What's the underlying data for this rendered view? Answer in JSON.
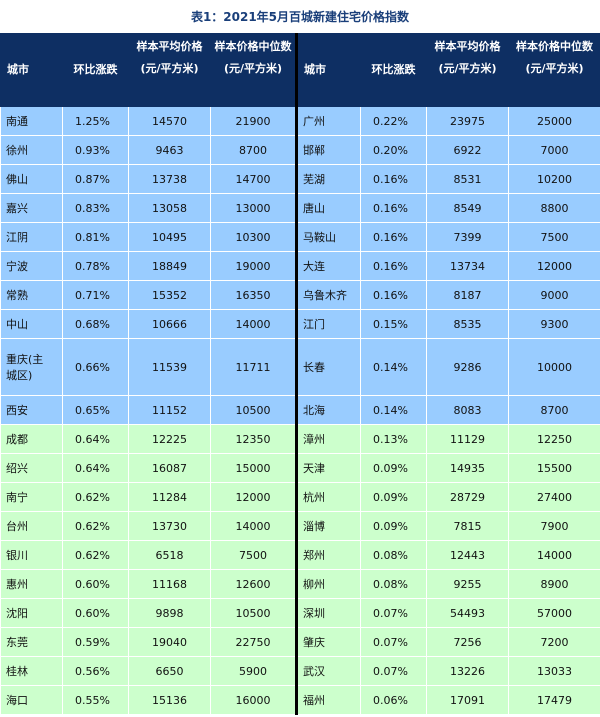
{
  "title": "表1：2021年5月百城新建住宅价格指数",
  "headers": {
    "city": "城市",
    "change": "环比涨跌",
    "avg_line1": "样本平均价格",
    "avg_unit": "(元/平方米)",
    "med_line1": "样本价格中位数",
    "med_unit": "(元/平方米)"
  },
  "colors": {
    "header": "#0e2f63",
    "blue_rows": "#99ccff",
    "green_rows": "#ccffcc"
  },
  "rows": [
    {
      "band": "blue",
      "l": {
        "city": "南通",
        "chg": "1.25%",
        "avg": "14570",
        "med": "21900"
      },
      "r": {
        "city": "广州",
        "chg": "0.22%",
        "avg": "23975",
        "med": "25000"
      }
    },
    {
      "band": "blue",
      "l": {
        "city": "徐州",
        "chg": "0.93%",
        "avg": "9463",
        "med": "8700"
      },
      "r": {
        "city": "邯郸",
        "chg": "0.20%",
        "avg": "6922",
        "med": "7000"
      }
    },
    {
      "band": "blue",
      "l": {
        "city": "佛山",
        "chg": "0.87%",
        "avg": "13738",
        "med": "14700"
      },
      "r": {
        "city": "芜湖",
        "chg": "0.16%",
        "avg": "8531",
        "med": "10200"
      }
    },
    {
      "band": "blue",
      "l": {
        "city": "嘉兴",
        "chg": "0.83%",
        "avg": "13058",
        "med": "13000"
      },
      "r": {
        "city": "唐山",
        "chg": "0.16%",
        "avg": "8549",
        "med": "8800"
      }
    },
    {
      "band": "blue",
      "l": {
        "city": "江阴",
        "chg": "0.81%",
        "avg": "10495",
        "med": "10300"
      },
      "r": {
        "city": "马鞍山",
        "chg": "0.16%",
        "avg": "7399",
        "med": "7500"
      }
    },
    {
      "band": "blue",
      "l": {
        "city": "宁波",
        "chg": "0.78%",
        "avg": "18849",
        "med": "19000"
      },
      "r": {
        "city": "大连",
        "chg": "0.16%",
        "avg": "13734",
        "med": "12000"
      }
    },
    {
      "band": "blue",
      "l": {
        "city": "常熟",
        "chg": "0.71%",
        "avg": "15352",
        "med": "16350"
      },
      "r": {
        "city": "乌鲁木齐",
        "chg": "0.16%",
        "avg": "8187",
        "med": "9000"
      }
    },
    {
      "band": "blue",
      "l": {
        "city": "中山",
        "chg": "0.68%",
        "avg": "10666",
        "med": "14000"
      },
      "r": {
        "city": "江门",
        "chg": "0.15%",
        "avg": "8535",
        "med": "9300"
      }
    },
    {
      "band": "blue",
      "tall": true,
      "l": {
        "city": "重庆(主",
        "city_b": "城区)",
        "chg": "0.66%",
        "avg": "11539",
        "med": "11711"
      },
      "r": {
        "city": "长春",
        "chg": "0.14%",
        "avg": "9286",
        "med": "10000"
      }
    },
    {
      "band": "blue",
      "l": {
        "city": "西安",
        "chg": "0.65%",
        "avg": "11152",
        "med": "10500"
      },
      "r": {
        "city": "北海",
        "chg": "0.14%",
        "avg": "8083",
        "med": "8700"
      }
    },
    {
      "band": "green",
      "l": {
        "city": "成都",
        "chg": "0.64%",
        "avg": "12225",
        "med": "12350"
      },
      "r": {
        "city": "漳州",
        "chg": "0.13%",
        "avg": "11129",
        "med": "12250"
      }
    },
    {
      "band": "green",
      "l": {
        "city": "绍兴",
        "chg": "0.64%",
        "avg": "16087",
        "med": "15000"
      },
      "r": {
        "city": "天津",
        "chg": "0.09%",
        "avg": "14935",
        "med": "15500"
      }
    },
    {
      "band": "green",
      "l": {
        "city": "南宁",
        "chg": "0.62%",
        "avg": "11284",
        "med": "12000"
      },
      "r": {
        "city": "杭州",
        "chg": "0.09%",
        "avg": "28729",
        "med": "27400"
      }
    },
    {
      "band": "green",
      "l": {
        "city": "台州",
        "chg": "0.62%",
        "avg": "13730",
        "med": "14000"
      },
      "r": {
        "city": "淄博",
        "chg": "0.09%",
        "avg": "7815",
        "med": "7900"
      }
    },
    {
      "band": "green",
      "l": {
        "city": "银川",
        "chg": "0.62%",
        "avg": "6518",
        "med": "7500"
      },
      "r": {
        "city": "郑州",
        "chg": "0.08%",
        "avg": "12443",
        "med": "14000"
      }
    },
    {
      "band": "green",
      "l": {
        "city": "惠州",
        "chg": "0.60%",
        "avg": "11168",
        "med": "12600"
      },
      "r": {
        "city": "柳州",
        "chg": "0.08%",
        "avg": "9255",
        "med": "8900"
      }
    },
    {
      "band": "green",
      "l": {
        "city": "沈阳",
        "chg": "0.60%",
        "avg": "9898",
        "med": "10500"
      },
      "r": {
        "city": "深圳",
        "chg": "0.07%",
        "avg": "54493",
        "med": "57000"
      }
    },
    {
      "band": "green",
      "l": {
        "city": "东莞",
        "chg": "0.59%",
        "avg": "19040",
        "med": "22750"
      },
      "r": {
        "city": "肇庆",
        "chg": "0.07%",
        "avg": "7256",
        "med": "7200"
      }
    },
    {
      "band": "green",
      "l": {
        "city": "桂林",
        "chg": "0.56%",
        "avg": "6650",
        "med": "5900"
      },
      "r": {
        "city": "武汉",
        "chg": "0.07%",
        "avg": "13226",
        "med": "13033"
      }
    },
    {
      "band": "green",
      "l": {
        "city": "海口",
        "chg": "0.55%",
        "avg": "15136",
        "med": "16000"
      },
      "r": {
        "city": "福州",
        "chg": "0.06%",
        "avg": "17091",
        "med": "17479"
      }
    }
  ]
}
